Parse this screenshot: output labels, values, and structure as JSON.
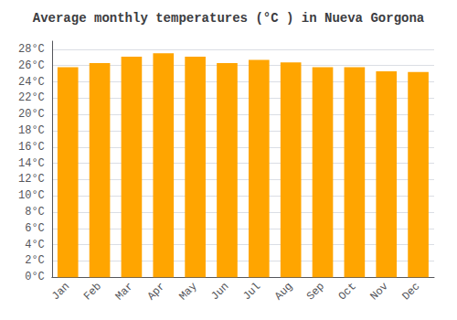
{
  "chart_data": {
    "type": "bar",
    "title": "Average monthly temperatures (°C ) in Nueva Gorgona",
    "categories": [
      "Jan",
      "Feb",
      "Mar",
      "Apr",
      "May",
      "Jun",
      "Jul",
      "Aug",
      "Sep",
      "Oct",
      "Nov",
      "Dec"
    ],
    "values": [
      25.8,
      26.3,
      27.1,
      27.5,
      27.1,
      26.3,
      26.7,
      26.4,
      25.8,
      25.8,
      25.3,
      25.2
    ],
    "color": "#FFA500",
    "ylim": [
      0,
      29
    ],
    "yticks": [
      {
        "value": 0,
        "label": "0°C"
      },
      {
        "value": 2,
        "label": "2°C"
      },
      {
        "value": 4,
        "label": "4°C"
      },
      {
        "value": 6,
        "label": "6°C"
      },
      {
        "value": 8,
        "label": "8°C"
      },
      {
        "value": 10,
        "label": "10°C"
      },
      {
        "value": 12,
        "label": "12°C"
      },
      {
        "value": 14,
        "label": "14°C"
      },
      {
        "value": 16,
        "label": "16°C"
      },
      {
        "value": 18,
        "label": "18°C"
      },
      {
        "value": 20,
        "label": "20°C"
      },
      {
        "value": 22,
        "label": "22°C"
      },
      {
        "value": 24,
        "label": "24°C"
      },
      {
        "value": 26,
        "label": "26°C"
      },
      {
        "value": 28,
        "label": "28°C"
      }
    ],
    "grid": true
  }
}
